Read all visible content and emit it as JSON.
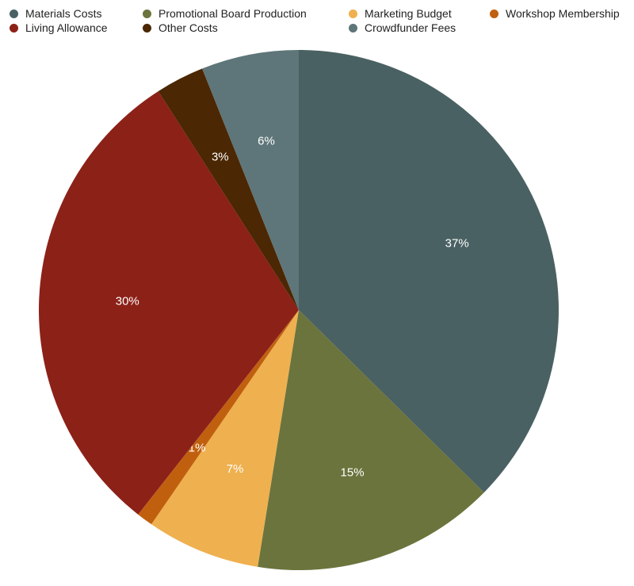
{
  "chart_data": {
    "type": "pie",
    "title": "",
    "legend_position": "top",
    "slices": [
      {
        "label": "Materials Costs",
        "value": 37,
        "display": "37%",
        "color": "#4a6163"
      },
      {
        "label": "Promotional Board Production",
        "value": 15,
        "display": "15%",
        "color": "#6b743d"
      },
      {
        "label": "Marketing Budget",
        "value": 7,
        "display": "7%",
        "color": "#efb04f"
      },
      {
        "label": "Workshop Membership",
        "value": 1,
        "display": "1%",
        "color": "#c0600f"
      },
      {
        "label": "Living Allowance",
        "value": 30,
        "display": "30%",
        "color": "#8c2118"
      },
      {
        "label": "Other Costs",
        "value": 3,
        "display": "3%",
        "color": "#4b2703"
      },
      {
        "label": "Crowdfunder Fees",
        "value": 6,
        "display": "6%",
        "color": "#5e7679"
      }
    ]
  }
}
